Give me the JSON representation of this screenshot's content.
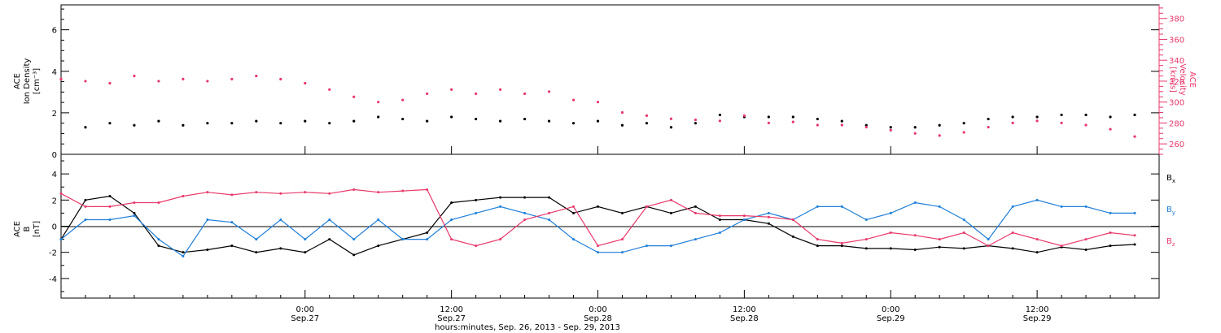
{
  "colors": {
    "axis": "#000000",
    "density": "#000000",
    "velocity": "#e8386a",
    "bx": "#000000",
    "by": "#1f7fd8",
    "bz": "#e8386a"
  },
  "chart_data": [
    {
      "type": "scatter",
      "panel": "top",
      "left_axis": {
        "label_line1": "ACE",
        "label_line2": "Ion Density",
        "unit": "[cm⁻³]",
        "range": [
          0,
          7.2
        ],
        "ticks": [
          0,
          2,
          4,
          6
        ],
        "tick_labels": [
          "0",
          "2",
          "4",
          "6"
        ]
      },
      "right_axis": {
        "label_line1": "ACE",
        "label_line2": "Velocity",
        "unit": "[km/s]",
        "range": [
          250,
          393
        ],
        "ticks": [
          260,
          280,
          300,
          320,
          340,
          360,
          380
        ],
        "tick_labels": [
          "260",
          "280",
          "300",
          "320",
          "340",
          "360",
          "380"
        ]
      },
      "x_hours": [
        -20,
        70
      ],
      "series": [
        {
          "name": "Ion Density",
          "axis": "left",
          "x": [
            -18,
            -16,
            -14,
            -12,
            -10,
            -8,
            -6,
            -4,
            -2,
            0,
            2,
            4,
            6,
            8,
            10,
            12,
            14,
            16,
            18,
            20,
            22,
            24,
            26,
            28,
            30,
            32,
            34,
            36,
            38,
            40,
            42,
            44,
            46,
            48,
            50,
            52,
            54,
            56,
            58,
            60,
            62,
            64,
            66,
            68
          ],
          "y": [
            1.3,
            1.5,
            1.4,
            1.6,
            1.4,
            1.5,
            1.5,
            1.6,
            1.5,
            1.6,
            1.5,
            1.6,
            1.8,
            1.7,
            1.6,
            1.8,
            1.7,
            1.6,
            1.7,
            1.6,
            1.5,
            1.6,
            1.4,
            1.5,
            1.3,
            1.5,
            1.9,
            1.8,
            1.8,
            1.8,
            1.7,
            1.6,
            1.4,
            1.3,
            1.3,
            1.4,
            1.5,
            1.7,
            1.8,
            1.8,
            1.9,
            1.9,
            1.8,
            1.9
          ]
        },
        {
          "name": "Velocity",
          "axis": "right",
          "x": [
            -20,
            -18,
            -16,
            -14,
            -12,
            -10,
            -8,
            -6,
            -4,
            -2,
            0,
            2,
            4,
            6,
            8,
            10,
            12,
            14,
            16,
            18,
            20,
            22,
            24,
            26,
            28,
            30,
            32,
            34,
            36,
            38,
            40,
            42,
            44,
            46,
            48,
            50,
            52,
            54,
            56,
            58,
            60,
            62,
            64,
            66,
            68
          ],
          "y": [
            322,
            320,
            318,
            325,
            320,
            322,
            320,
            322,
            325,
            322,
            318,
            312,
            305,
            300,
            302,
            308,
            312,
            308,
            312,
            308,
            310,
            302,
            300,
            290,
            287,
            284,
            283,
            282,
            287,
            280,
            281,
            278,
            278,
            276,
            273,
            270,
            268,
            271,
            276,
            280,
            282,
            280,
            278,
            274,
            267
          ]
        }
      ]
    },
    {
      "type": "line",
      "panel": "bottom",
      "left_axis": {
        "label_line1": "ACE",
        "label_line2": "B",
        "unit": "[nT]",
        "range": [
          -5.5,
          5.5
        ],
        "ticks": [
          -4,
          -2,
          0,
          2,
          4
        ],
        "tick_labels": [
          "-4",
          "-2",
          "0",
          "2",
          "4"
        ]
      },
      "x_axis": {
        "range_hours": [
          -20,
          70
        ],
        "ticks_hours": [
          0,
          12,
          24,
          36,
          48,
          60
        ],
        "tick_time": [
          "0:00",
          "12:00",
          "0:00",
          "12:00",
          "0:00",
          "12:00"
        ],
        "tick_date": [
          "Sep.27",
          "Sep.27",
          "Sep.28",
          "Sep.28",
          "Sep.29",
          "Sep.29"
        ],
        "caption": "hours:minutes, Sep. 26, 2013 - Sep. 29, 2013"
      },
      "series": [
        {
          "name": "Bx",
          "label_main": "B",
          "label_sub": "x",
          "color_key": "bx",
          "x": [
            -20,
            -18,
            -16,
            -14,
            -12,
            -10,
            -8,
            -6,
            -4,
            -2,
            0,
            2,
            4,
            6,
            8,
            10,
            12,
            14,
            16,
            18,
            20,
            22,
            24,
            26,
            28,
            30,
            32,
            34,
            36,
            38,
            40,
            42,
            44,
            46,
            48,
            50,
            52,
            54,
            56,
            58,
            60,
            62,
            64,
            66,
            68
          ],
          "y": [
            -1.0,
            2.0,
            2.3,
            1.0,
            -1.5,
            -2.0,
            -1.8,
            -1.5,
            -2.0,
            -1.7,
            -2.0,
            -1.0,
            -2.2,
            -1.5,
            -1.0,
            -0.5,
            1.8,
            2.0,
            2.2,
            2.2,
            2.2,
            1.0,
            1.5,
            1.0,
            1.5,
            1.0,
            1.5,
            0.5,
            0.5,
            0.2,
            -0.8,
            -1.5,
            -1.5,
            -1.7,
            -1.7,
            -1.8,
            -1.6,
            -1.7,
            -1.5,
            -1.7,
            -2.0,
            -1.6,
            -1.8,
            -1.5,
            -1.4
          ]
        },
        {
          "name": "By",
          "label_main": "B",
          "label_sub": "y",
          "color_key": "by",
          "x": [
            -20,
            -18,
            -16,
            -14,
            -12,
            -10,
            -8,
            -6,
            -4,
            -2,
            0,
            2,
            4,
            6,
            8,
            10,
            12,
            14,
            16,
            18,
            20,
            22,
            24,
            26,
            28,
            30,
            32,
            34,
            36,
            38,
            40,
            42,
            44,
            46,
            48,
            50,
            52,
            54,
            56,
            58,
            60,
            62,
            64,
            66,
            68
          ],
          "y": [
            -1.0,
            0.5,
            0.5,
            0.8,
            -1.0,
            -2.3,
            0.5,
            0.3,
            -1.0,
            0.5,
            -1.0,
            0.5,
            -1.0,
            0.5,
            -1.0,
            -1.0,
            0.5,
            1.0,
            1.5,
            1.0,
            0.5,
            -1.0,
            -2.0,
            -2.0,
            -1.5,
            -1.5,
            -1.0,
            -0.5,
            0.5,
            1.0,
            0.5,
            1.5,
            1.5,
            0.5,
            1.0,
            1.8,
            1.5,
            0.5,
            -1.0,
            1.5,
            2.0,
            1.5,
            1.5,
            1.0,
            1.0
          ]
        },
        {
          "name": "Bz",
          "label_main": "B",
          "label_sub": "z",
          "color_key": "bz",
          "x": [
            -20,
            -18,
            -16,
            -14,
            -12,
            -10,
            -8,
            -6,
            -4,
            -2,
            0,
            2,
            4,
            6,
            8,
            10,
            12,
            14,
            16,
            18,
            20,
            22,
            24,
            26,
            28,
            30,
            32,
            34,
            36,
            38,
            40,
            42,
            44,
            46,
            48,
            50,
            52,
            54,
            56,
            58,
            60,
            62,
            64,
            66,
            68
          ],
          "y": [
            2.5,
            1.5,
            1.5,
            1.8,
            1.8,
            2.3,
            2.6,
            2.4,
            2.6,
            2.5,
            2.6,
            2.5,
            2.8,
            2.6,
            2.7,
            2.8,
            -1.0,
            -1.5,
            -1.0,
            0.5,
            1.0,
            1.5,
            -1.5,
            -1.0,
            1.5,
            2.0,
            1.0,
            0.8,
            0.8,
            0.7,
            0.5,
            -1.0,
            -1.3,
            -1.0,
            -0.5,
            -0.7,
            -1.0,
            -0.5,
            -1.5,
            -0.5,
            -1.0,
            -1.5,
            -1.0,
            -0.5,
            -0.7
          ]
        }
      ]
    }
  ]
}
